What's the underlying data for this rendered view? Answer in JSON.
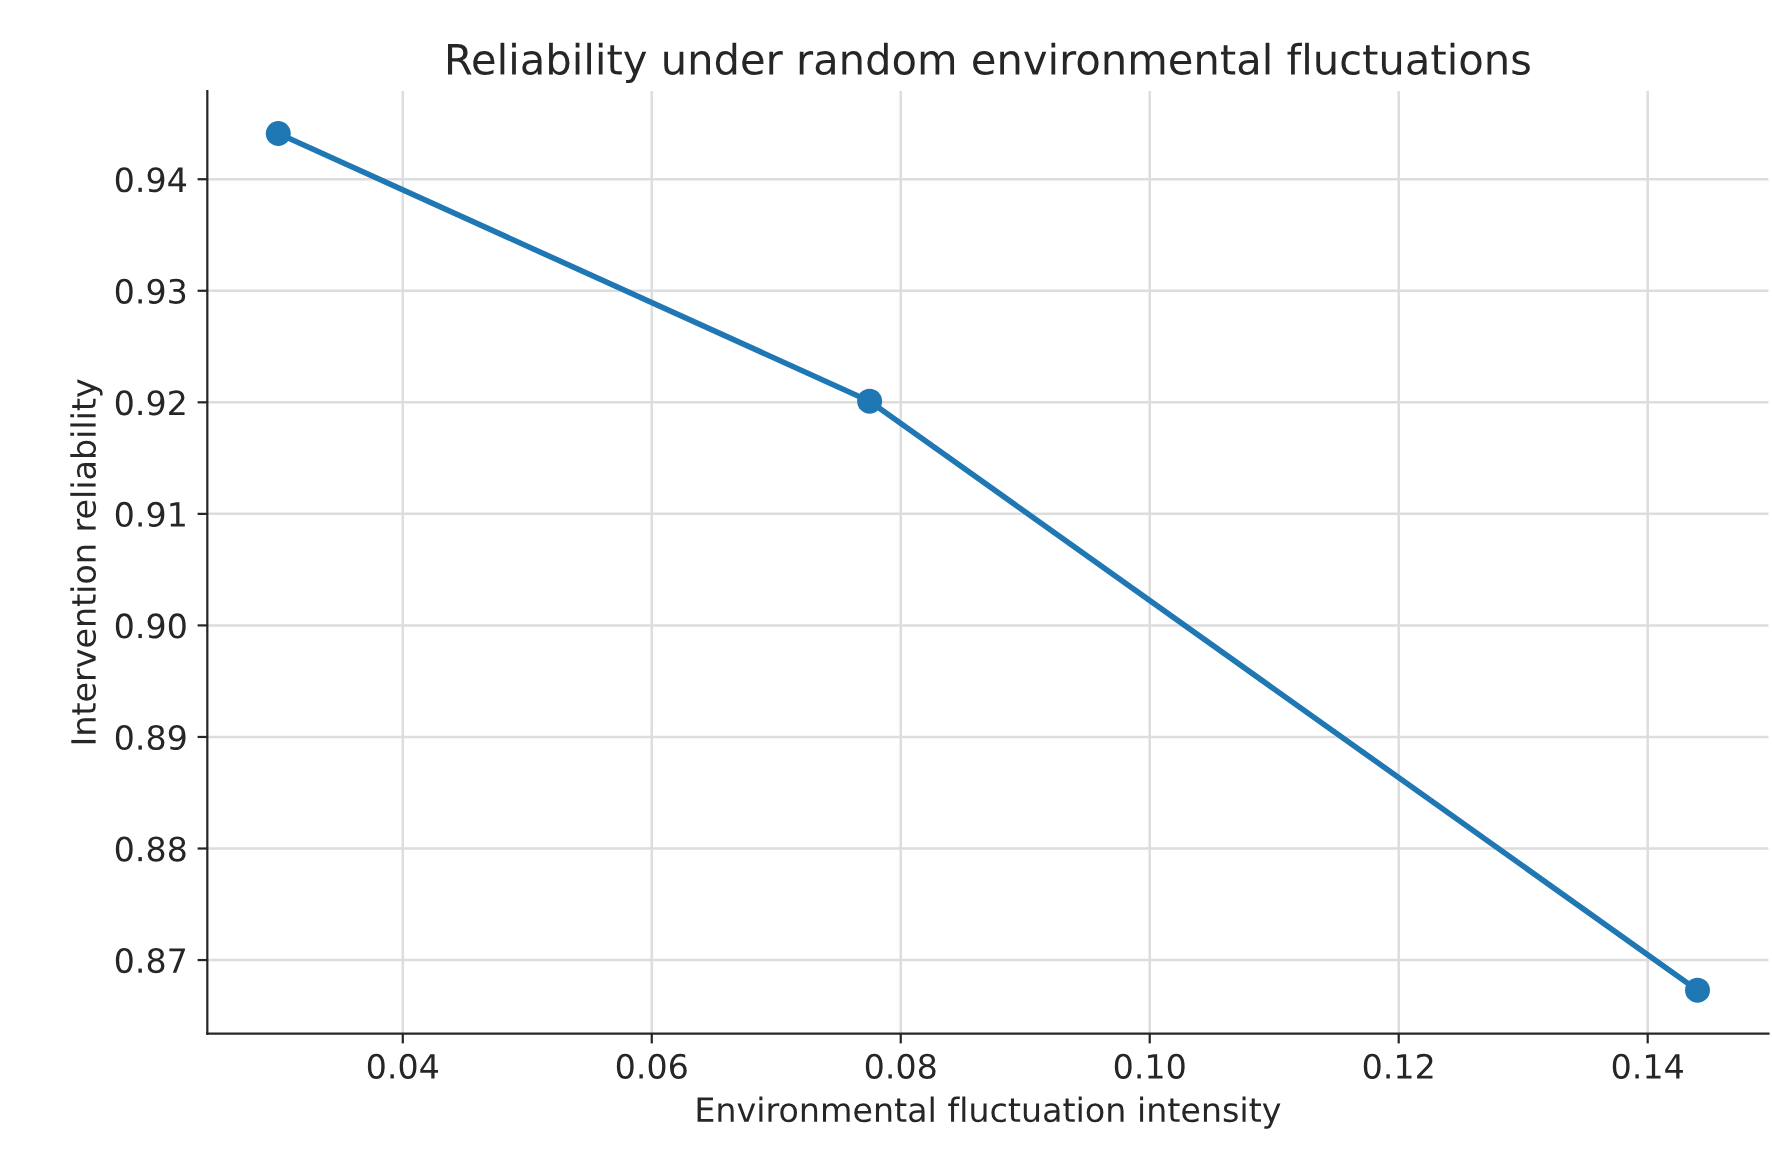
{
  "chart_data": {
    "type": "line",
    "title": "Reliability under random environmental fluctuations",
    "xlabel": "Environmental fluctuation intensity",
    "ylabel": "Intervention reliability",
    "x": [
      0.03,
      0.0775,
      0.144
    ],
    "series": [
      {
        "color": "#1f77b4",
        "values": [
          0.9441,
          0.9201,
          0.8673
        ]
      }
    ],
    "xlim": [
      0.0243,
      0.1497
    ],
    "xticks": [
      {
        "value": 0.04,
        "label": "0.04"
      },
      {
        "value": 0.06,
        "label": "0.06"
      },
      {
        "value": 0.08,
        "label": "0.08"
      },
      {
        "value": 0.1,
        "label": "0.10"
      },
      {
        "value": 0.12,
        "label": "0.12"
      },
      {
        "value": 0.14,
        "label": "0.14"
      }
    ],
    "ylim": [
      0.8634,
      0.9479
    ],
    "yticks": [
      {
        "value": 0.87,
        "label": "0.87"
      },
      {
        "value": 0.88,
        "label": "0.88"
      },
      {
        "value": 0.89,
        "label": "0.89"
      },
      {
        "value": 0.9,
        "label": "0.90"
      },
      {
        "value": 0.91,
        "label": "0.91"
      },
      {
        "value": 0.92,
        "label": "0.92"
      },
      {
        "value": 0.93,
        "label": "0.93"
      },
      {
        "value": 0.94,
        "label": "0.94"
      }
    ],
    "grid": true,
    "marker": "circle",
    "line_style": "solid"
  }
}
